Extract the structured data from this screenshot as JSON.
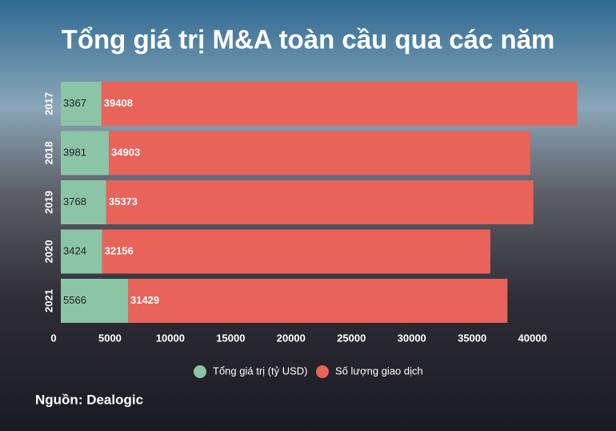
{
  "chart_data": {
    "type": "stacked-bar-horizontal",
    "title": "Tổng giá trị M&A toàn cầu qua các năm",
    "categories": [
      "2017",
      "2018",
      "2019",
      "2020",
      "2021"
    ],
    "series": [
      {
        "name": "Tổng giá trị (tỷ USD)",
        "color": "#8cc4a6",
        "values": [
          3367,
          3981,
          3768,
          3424,
          5566
        ]
      },
      {
        "name": "Số lượng giao dịch",
        "color": "#e8635a",
        "values": [
          39408,
          34903,
          35373,
          32156,
          31429
        ]
      }
    ],
    "xlim": [
      0,
      44000
    ],
    "xticks": [
      0,
      5000,
      10000,
      15000,
      20000,
      25000,
      30000,
      35000,
      40000
    ],
    "legend": "bottom",
    "source": "Nguồn: Dealogic"
  }
}
